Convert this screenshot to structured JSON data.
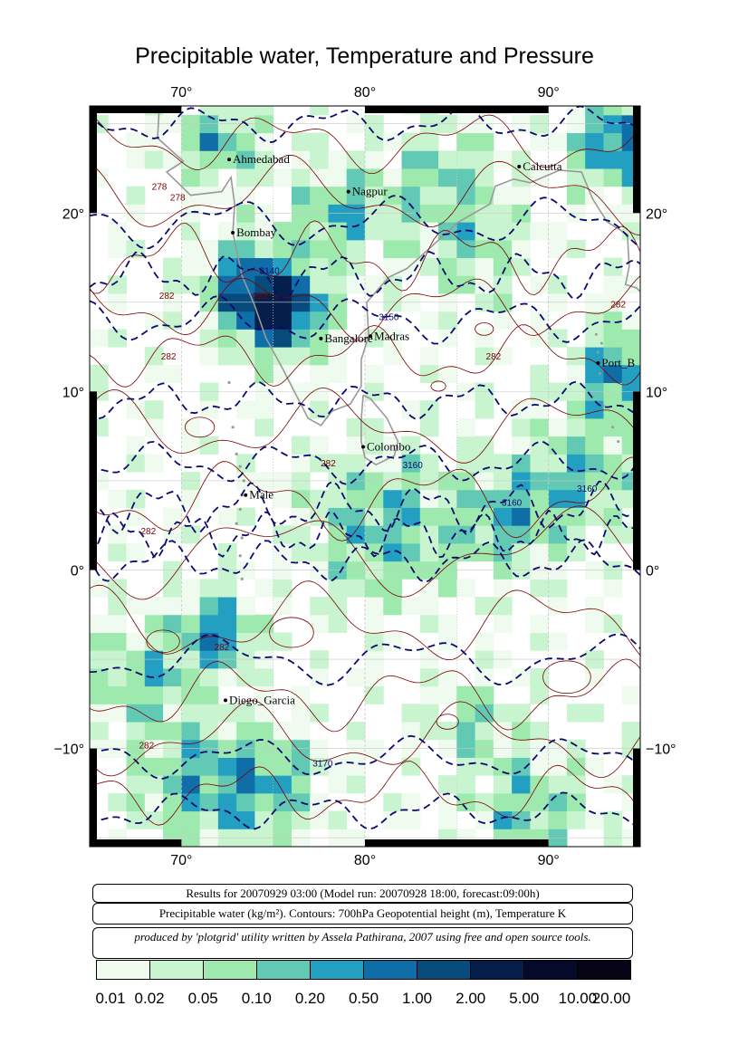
{
  "title": "Precipitable water, Temperature and Pressure",
  "map": {
    "lon_range": [
      65,
      95
    ],
    "lat_range": [
      -15.5,
      26
    ],
    "top_ticks": [
      "70°",
      "80°",
      "90°"
    ],
    "bottom_ticks": [
      "70°",
      "80°",
      "90°"
    ],
    "left_ticks": [
      "20°",
      "10°",
      "0°",
      "−10°"
    ],
    "right_ticks": [
      "20°",
      "10°",
      "0°",
      "−10°"
    ],
    "cities": [
      {
        "name": "Ahmedabad",
        "lon": 72.6,
        "lat": 23.0
      },
      {
        "name": "Calcutta",
        "lon": 88.4,
        "lat": 22.6
      },
      {
        "name": "Nagpur",
        "lon": 79.1,
        "lat": 21.2
      },
      {
        "name": "Bombay",
        "lon": 72.8,
        "lat": 18.9
      },
      {
        "name": "Bangalore",
        "lon": 77.6,
        "lat": 12.97
      },
      {
        "name": "Madras",
        "lon": 80.3,
        "lat": 13.1
      },
      {
        "name": "Port_B",
        "lon": 92.7,
        "lat": 11.6
      },
      {
        "name": "Colombo",
        "lon": 79.9,
        "lat": 6.9
      },
      {
        "name": "Male",
        "lon": 73.5,
        "lat": 4.2
      },
      {
        "name": "Diego_Garcia",
        "lon": 72.4,
        "lat": -7.3
      }
    ],
    "contour_labels": [
      {
        "text": "278",
        "lon": 68.8,
        "lat": 21.3
      },
      {
        "text": "278",
        "lon": 69.8,
        "lat": 20.7
      },
      {
        "text": "3140",
        "lon": 74.8,
        "lat": 16.6
      },
      {
        "text": "282",
        "lon": 69.2,
        "lat": 15.2
      },
      {
        "text": "282",
        "lon": 74.3,
        "lat": 15.2
      },
      {
        "text": "3150",
        "lon": 81.3,
        "lat": 14.0
      },
      {
        "text": "282",
        "lon": 93.8,
        "lat": 14.7
      },
      {
        "text": "282",
        "lon": 69.3,
        "lat": 11.8
      },
      {
        "text": "282",
        "lon": 87.0,
        "lat": 11.8
      },
      {
        "text": "282",
        "lon": 78.0,
        "lat": 5.8
      },
      {
        "text": "3160",
        "lon": 82.6,
        "lat": 5.7
      },
      {
        "text": "3160",
        "lon": 92.1,
        "lat": 4.4
      },
      {
        "text": "3160",
        "lon": 88.0,
        "lat": 3.6
      },
      {
        "text": "282",
        "lon": 68.2,
        "lat": 2.0
      },
      {
        "text": "282",
        "lon": 72.2,
        "lat": -4.5
      },
      {
        "text": "282",
        "lon": 68.1,
        "lat": -10.0
      },
      {
        "text": "3170",
        "lon": 77.7,
        "lat": -11.0
      }
    ],
    "contour_colors": {
      "geopotential": "#0a0a6e",
      "temperature": "#7a0000",
      "coast": "#999999",
      "grid": "#c8c8c8"
    }
  },
  "info": {
    "line1": "Results for 20070929 03:00 (Model run: 20070928 18:00, forecast:09:00h)",
    "line2": "Precipitable water (kg/m²).  Contours: 700hPa Geopotential height (m), Temperature K",
    "line3": "produced by 'plotgrid' utility written by Assela Pathirana, 2007 using free and open source tools."
  },
  "colorbar": {
    "labels": [
      "0.01",
      "0.02",
      "0.05",
      "0.10",
      "0.20",
      "0.50",
      "1.00",
      "2.00",
      "5.00",
      "10.00",
      "20.00"
    ],
    "colors": [
      "#effbef",
      "#c8f5cf",
      "#9eeaae",
      "#62c9b4",
      "#239fc1",
      "#0f6ea8",
      "#074a7c",
      "#061f4a",
      "#050a2a",
      "#040414"
    ]
  }
}
